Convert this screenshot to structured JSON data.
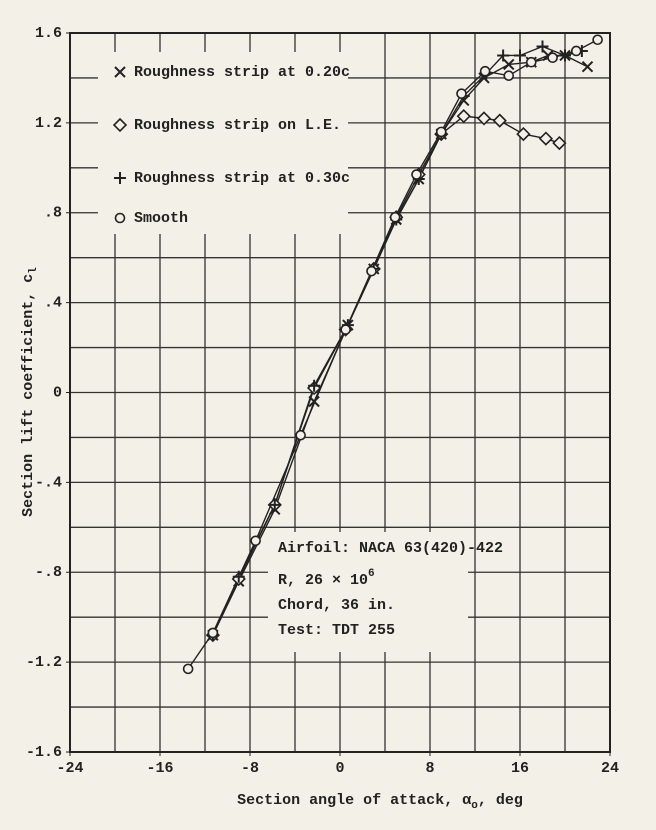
{
  "chart_data": {
    "type": "line",
    "y_label": [
      "Section lift coefficient, c",
      "l"
    ],
    "x_label": [
      "Section angle of attack, α",
      "o",
      ", deg"
    ],
    "annotations": [
      "Airfoil: NACA 63(420)-422",
      [
        "R, 26 × 10",
        "6"
      ],
      "Chord, 36 in.",
      "Test: TDT 255"
    ],
    "xlim": [
      -24,
      24
    ],
    "ylim": [
      -1.6,
      1.6
    ],
    "xticks": [
      -24,
      -16,
      -8,
      0,
      8,
      16,
      24
    ],
    "yticks": [
      -1.6,
      -1.2,
      {
        "value": -0.8,
        "label": "-.8"
      },
      {
        "value": -0.4,
        "label": "-.4"
      },
      0,
      {
        "value": 0.4,
        "label": ".4"
      },
      {
        "value": 0.8,
        "label": ".8"
      },
      1.2,
      1.6
    ],
    "xgrid": [
      -24,
      -20,
      -16,
      -12,
      -8,
      -4,
      0,
      4,
      8,
      12,
      16,
      20,
      24
    ],
    "ygrid": [
      -1.6,
      -1.4,
      -1.2,
      -1.0,
      -0.8,
      -0.6,
      -0.4,
      -0.2,
      0,
      0.2,
      0.4,
      0.6,
      0.8,
      1.0,
      1.2,
      1.4,
      1.6
    ],
    "color": "#222222",
    "series": [
      {
        "name": "Roughness strip at 0.20c",
        "marker": "x",
        "color": "#222222",
        "x": [
          -11.3,
          -9,
          -5.8,
          -2.3,
          0.7,
          3,
          5,
          7,
          9,
          11,
          12.8,
          15,
          17,
          18.5,
          20,
          22
        ],
        "values": [
          -1.08,
          -0.84,
          -0.52,
          -0.04,
          0.3,
          0.55,
          0.77,
          0.95,
          1.15,
          1.3,
          1.4,
          1.46,
          1.47,
          1.5,
          1.5,
          1.45
        ]
      },
      {
        "name": "Roughness strip on L.E.",
        "marker": "diamond",
        "color": "#222222",
        "x": [
          -11.3,
          -9,
          -5.8,
          -2.3,
          0.5,
          3,
          5,
          7,
          9,
          11,
          12.8,
          14.2,
          16.3,
          18.3,
          19.5
        ],
        "values": [
          -1.08,
          -0.83,
          -0.5,
          0.02,
          0.28,
          0.55,
          0.78,
          0.97,
          1.15,
          1.23,
          1.22,
          1.21,
          1.15,
          1.13,
          1.11
        ]
      },
      {
        "name": "Roughness strip at 0.30c",
        "marker": "plus",
        "color": "#222222",
        "x": [
          -11.3,
          -9,
          -5.8,
          -2.3,
          0.7,
          3,
          5,
          7,
          9,
          11,
          13,
          14.5,
          16,
          18,
          20,
          21.5
        ],
        "values": [
          -1.08,
          -0.82,
          -0.5,
          0.03,
          0.3,
          0.55,
          0.77,
          0.95,
          1.15,
          1.32,
          1.42,
          1.5,
          1.5,
          1.54,
          1.5,
          1.52
        ]
      },
      {
        "name": "Smooth",
        "marker": "circle",
        "color": "#222222",
        "x": [
          -13.5,
          -11.3,
          -7.5,
          -3.5,
          0.5,
          2.8,
          4.9,
          6.8,
          9,
          10.8,
          12.9,
          15,
          17,
          18.9,
          21,
          22.9
        ],
        "values": [
          -1.23,
          -1.07,
          -0.66,
          -0.19,
          0.28,
          0.54,
          0.78,
          0.97,
          1.16,
          1.33,
          1.43,
          1.41,
          1.47,
          1.49,
          1.52,
          1.57
        ]
      }
    ]
  }
}
